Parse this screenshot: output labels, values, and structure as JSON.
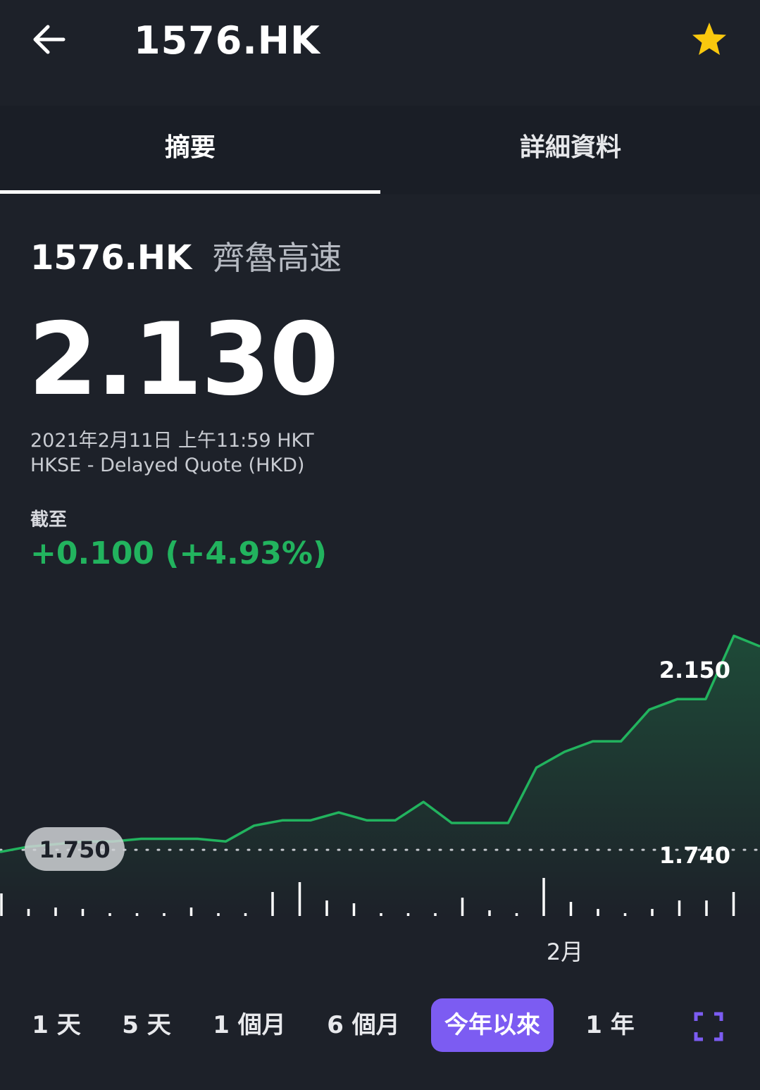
{
  "header": {
    "title": "1576.HK",
    "back_icon": "arrow-left-icon",
    "favorite_icon": "star-icon",
    "favorite_color": "#f9c80e"
  },
  "tabs": [
    {
      "label": "摘要",
      "active": true
    },
    {
      "label": "詳細資料",
      "active": false
    }
  ],
  "quote": {
    "symbol": "1576.HK",
    "company": "齊魯高速",
    "price": "2.130",
    "timestamp": "2021年2月11日 上午11:59 HKT",
    "exchange": "HKSE - Delayed Quote (HKD)",
    "as_of_label": "截至",
    "change": "+0.100 (+4.93%)",
    "change_color": "#22b35e"
  },
  "chart_data": {
    "type": "area",
    "line_color": "#22b35e",
    "y_labels": {
      "high": "2.150",
      "reference": "1.740",
      "start": "1.750"
    },
    "x_labels": [
      "2月"
    ],
    "values": [
      1.74,
      1.75,
      1.755,
      1.76,
      1.76,
      1.765,
      1.765,
      1.765,
      1.76,
      1.79,
      1.8,
      1.8,
      1.815,
      1.8,
      1.8,
      1.835,
      1.795,
      1.795,
      1.795,
      1.9,
      1.93,
      1.95,
      1.95,
      2.01,
      2.03,
      2.03,
      2.15,
      2.13
    ],
    "ylim": [
      1.64,
      2.18
    ]
  },
  "ranges": [
    {
      "label": "1 天",
      "active": false
    },
    {
      "label": "5 天",
      "active": false
    },
    {
      "label": "1 個月",
      "active": false
    },
    {
      "label": "6 個月",
      "active": false
    },
    {
      "label": "今年以來",
      "active": true
    },
    {
      "label": "1 年",
      "active": false
    }
  ],
  "expand_icon": "fullscreen-icon",
  "accent_color": "#7c5cf2"
}
